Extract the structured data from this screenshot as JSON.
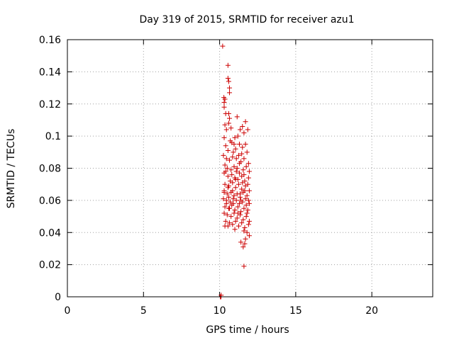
{
  "chart_data": {
    "type": "scatter",
    "title": "Day 319 of 2015, SRMTID for receiver azu1",
    "xlabel": "GPS time / hours",
    "ylabel": "SRMTID / TECUs",
    "xlim": [
      0,
      24
    ],
    "ylim": [
      0,
      0.16
    ],
    "xticks": [
      0,
      5,
      10,
      15,
      20
    ],
    "xtick_labels": [
      "0",
      "5",
      "10",
      "15",
      "20"
    ],
    "yticks": [
      0,
      0.02,
      0.04,
      0.06,
      0.08,
      0.1,
      0.12,
      0.14,
      0.16
    ],
    "ytick_labels": [
      "0",
      "0.02",
      "0.04",
      "0.06",
      "0.08",
      "0.1",
      "0.12",
      "0.14",
      "0.16"
    ],
    "grid": true,
    "marker": "plus",
    "color": "#cc0000",
    "series": [
      {
        "name": "SRMTID",
        "points": [
          [
            10.05,
            0.0
          ],
          [
            10.07,
            0.0
          ],
          [
            10.09,
            0.0
          ],
          [
            10.1,
            0.001
          ],
          [
            10.2,
            0.156
          ],
          [
            10.55,
            0.144
          ],
          [
            10.55,
            0.136
          ],
          [
            10.6,
            0.134
          ],
          [
            10.65,
            0.13
          ],
          [
            10.65,
            0.127
          ],
          [
            10.28,
            0.124
          ],
          [
            10.3,
            0.121
          ],
          [
            10.35,
            0.123
          ],
          [
            10.3,
            0.118
          ],
          [
            10.6,
            0.114
          ],
          [
            10.65,
            0.111
          ],
          [
            10.4,
            0.114
          ],
          [
            11.15,
            0.112
          ],
          [
            11.7,
            0.109
          ],
          [
            11.5,
            0.106
          ],
          [
            11.35,
            0.104
          ],
          [
            11.6,
            0.102
          ],
          [
            11.85,
            0.104
          ],
          [
            11.2,
            0.1
          ],
          [
            11.0,
            0.099
          ],
          [
            10.35,
            0.107
          ],
          [
            10.45,
            0.104
          ],
          [
            10.6,
            0.108
          ],
          [
            10.75,
            0.105
          ],
          [
            10.3,
            0.099
          ],
          [
            10.7,
            0.097
          ],
          [
            10.8,
            0.096
          ],
          [
            10.4,
            0.094
          ],
          [
            10.55,
            0.091
          ],
          [
            10.9,
            0.09
          ],
          [
            11.05,
            0.092
          ],
          [
            11.3,
            0.095
          ],
          [
            11.5,
            0.093
          ],
          [
            11.7,
            0.095
          ],
          [
            11.8,
            0.09
          ],
          [
            10.25,
            0.088
          ],
          [
            10.45,
            0.086
          ],
          [
            10.65,
            0.085
          ],
          [
            10.85,
            0.087
          ],
          [
            11.1,
            0.086
          ],
          [
            11.25,
            0.088
          ],
          [
            11.4,
            0.084
          ],
          [
            11.6,
            0.086
          ],
          [
            11.9,
            0.083
          ],
          [
            10.35,
            0.082
          ],
          [
            10.5,
            0.08
          ],
          [
            10.75,
            0.079
          ],
          [
            10.95,
            0.081
          ],
          [
            11.15,
            0.08
          ],
          [
            11.3,
            0.077
          ],
          [
            11.55,
            0.079
          ],
          [
            11.75,
            0.081
          ],
          [
            11.95,
            0.078
          ],
          [
            10.3,
            0.077
          ],
          [
            10.55,
            0.075
          ],
          [
            10.8,
            0.076
          ],
          [
            11.0,
            0.074
          ],
          [
            11.2,
            0.073
          ],
          [
            11.45,
            0.075
          ],
          [
            11.65,
            0.072
          ],
          [
            11.9,
            0.074
          ],
          [
            10.35,
            0.07
          ],
          [
            10.6,
            0.069
          ],
          [
            10.85,
            0.071
          ],
          [
            11.05,
            0.068
          ],
          [
            11.25,
            0.07
          ],
          [
            11.45,
            0.067
          ],
          [
            11.7,
            0.069
          ],
          [
            11.95,
            0.066
          ],
          [
            10.3,
            0.066
          ],
          [
            10.5,
            0.064
          ],
          [
            10.75,
            0.065
          ],
          [
            10.95,
            0.063
          ],
          [
            11.15,
            0.064
          ],
          [
            11.35,
            0.062
          ],
          [
            11.55,
            0.065
          ],
          [
            11.8,
            0.063
          ],
          [
            10.25,
            0.061
          ],
          [
            10.45,
            0.06
          ],
          [
            10.7,
            0.059
          ],
          [
            10.9,
            0.061
          ],
          [
            11.1,
            0.06
          ],
          [
            11.3,
            0.058
          ],
          [
            11.5,
            0.059
          ],
          [
            11.75,
            0.057
          ],
          [
            11.95,
            0.058
          ],
          [
            10.35,
            0.056
          ],
          [
            10.6,
            0.055
          ],
          [
            10.8,
            0.057
          ],
          [
            11.0,
            0.054
          ],
          [
            11.2,
            0.056
          ],
          [
            11.4,
            0.053
          ],
          [
            11.6,
            0.055
          ],
          [
            11.85,
            0.054
          ],
          [
            10.3,
            0.052
          ],
          [
            10.5,
            0.051
          ],
          [
            10.75,
            0.05
          ],
          [
            10.95,
            0.052
          ],
          [
            11.15,
            0.049
          ],
          [
            11.35,
            0.051
          ],
          [
            11.55,
            0.048
          ],
          [
            11.75,
            0.05
          ],
          [
            11.95,
            0.047
          ],
          [
            10.4,
            0.047
          ],
          [
            10.65,
            0.046
          ],
          [
            10.85,
            0.045
          ],
          [
            11.05,
            0.047
          ],
          [
            11.25,
            0.044
          ],
          [
            11.45,
            0.046
          ],
          [
            11.65,
            0.043
          ],
          [
            11.9,
            0.045
          ],
          [
            10.35,
            0.044
          ],
          [
            10.55,
            0.044
          ],
          [
            11.0,
            0.042
          ],
          [
            11.6,
            0.041
          ],
          [
            11.8,
            0.04
          ],
          [
            11.95,
            0.038
          ],
          [
            11.7,
            0.036
          ],
          [
            11.4,
            0.034
          ],
          [
            11.55,
            0.031
          ],
          [
            11.65,
            0.033
          ],
          [
            11.6,
            0.019
          ],
          [
            10.3,
            0.065
          ],
          [
            10.45,
            0.058
          ],
          [
            10.6,
            0.062
          ],
          [
            10.7,
            0.072
          ],
          [
            10.85,
            0.066
          ],
          [
            11.1,
            0.078
          ],
          [
            11.3,
            0.083
          ],
          [
            11.45,
            0.089
          ],
          [
            11.6,
            0.076
          ],
          [
            11.85,
            0.07
          ],
          [
            10.4,
            0.078
          ],
          [
            10.95,
            0.095
          ],
          [
            11.05,
            0.073
          ],
          [
            11.35,
            0.064
          ],
          [
            11.5,
            0.071
          ],
          [
            11.7,
            0.061
          ],
          [
            11.8,
            0.052
          ],
          [
            10.55,
            0.068
          ],
          [
            10.9,
            0.058
          ],
          [
            11.2,
            0.052
          ],
          [
            11.4,
            0.06
          ],
          [
            11.65,
            0.066
          ],
          [
            11.9,
            0.06
          ],
          [
            10.65,
            0.055
          ]
        ]
      }
    ]
  }
}
